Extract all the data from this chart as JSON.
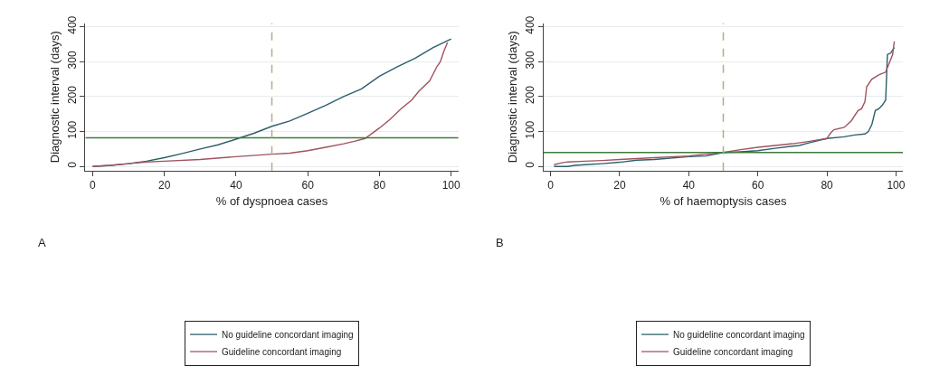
{
  "chart_data": [
    {
      "type": "line",
      "xlabel": "% of dyspnoea cases",
      "ylabel": "Diagnostic interval (days)",
      "xlim": [
        -2,
        102
      ],
      "ylim": [
        -12,
        410
      ],
      "xticks": [
        0,
        20,
        40,
        60,
        80,
        100
      ],
      "yticks": [
        0,
        100,
        200,
        300,
        400
      ],
      "grid": "y",
      "legend": "bottom",
      "annotations": [
        "A"
      ],
      "ref_lines": [
        {
          "axis": "y",
          "value": 82,
          "color": "#3d7a3d",
          "line_style": "solid"
        },
        {
          "axis": "x",
          "value": 50,
          "color": "#b8a88a",
          "line_style": "dashed"
        }
      ],
      "series": [
        {
          "name": "No guideline concordant imaging",
          "color": "#2b5f6b",
          "x": [
            0,
            5,
            10,
            15,
            20,
            25,
            30,
            35,
            40,
            45,
            50,
            55,
            60,
            65,
            70,
            75,
            80,
            85,
            90,
            95,
            100
          ],
          "values": [
            0,
            3,
            8,
            15,
            25,
            37,
            50,
            62,
            78,
            95,
            115,
            130,
            152,
            175,
            200,
            222,
            258,
            285,
            310,
            340,
            365
          ]
        },
        {
          "name": "Guideline concordant imaging",
          "color": "#a0525f",
          "x": [
            0,
            5,
            10,
            15,
            20,
            30,
            40,
            50,
            55,
            60,
            65,
            70,
            73,
            76,
            80,
            83,
            86,
            89,
            91,
            94,
            96,
            97,
            98,
            99
          ],
          "values": [
            0,
            3,
            8,
            13,
            15,
            20,
            28,
            35,
            38,
            45,
            55,
            65,
            72,
            80,
            110,
            135,
            165,
            190,
            215,
            245,
            285,
            300,
            330,
            355
          ]
        }
      ]
    },
    {
      "type": "line",
      "xlabel": "% of haemoptysis cases",
      "ylabel": "Diagnostic interval (days)",
      "xlim": [
        -2,
        102
      ],
      "ylim": [
        -12,
        410
      ],
      "xticks": [
        0,
        20,
        40,
        60,
        80,
        100
      ],
      "yticks": [
        0,
        100,
        200,
        300,
        400
      ],
      "grid": "y",
      "legend": "bottom",
      "annotations": [
        "B"
      ],
      "ref_lines": [
        {
          "axis": "y",
          "value": 40,
          "color": "#3d7a3d",
          "line_style": "solid"
        },
        {
          "axis": "x",
          "value": 50,
          "color": "#b8a88a",
          "line_style": "dashed"
        }
      ],
      "series": [
        {
          "name": "No guideline concordant imaging",
          "color": "#2b5f6b",
          "x": [
            1,
            5,
            7,
            10,
            15,
            20,
            25,
            30,
            40,
            45,
            50,
            55,
            60,
            65,
            70,
            72,
            75,
            80,
            85,
            88,
            91,
            92,
            93,
            94,
            95,
            96,
            97,
            97.5,
            98.5,
            99.5
          ],
          "values": [
            0,
            0,
            3,
            5,
            8,
            12,
            18,
            20,
            28,
            30,
            40,
            42,
            45,
            52,
            58,
            60,
            68,
            80,
            85,
            90,
            93,
            100,
            120,
            160,
            165,
            175,
            190,
            320,
            325,
            340
          ]
        },
        {
          "name": "Guideline concordant imaging",
          "color": "#a0525f",
          "x": [
            1,
            3,
            5,
            10,
            15,
            20,
            30,
            40,
            45,
            50,
            55,
            60,
            70,
            75,
            80,
            81,
            82,
            85,
            87,
            89,
            90,
            91,
            91.5,
            93,
            95,
            97,
            99,
            99.5
          ],
          "values": [
            5,
            10,
            13,
            15,
            17,
            20,
            25,
            30,
            35,
            40,
            48,
            55,
            65,
            72,
            80,
            95,
            105,
            112,
            130,
            160,
            165,
            185,
            228,
            250,
            262,
            270,
            320,
            358
          ]
        }
      ]
    }
  ]
}
